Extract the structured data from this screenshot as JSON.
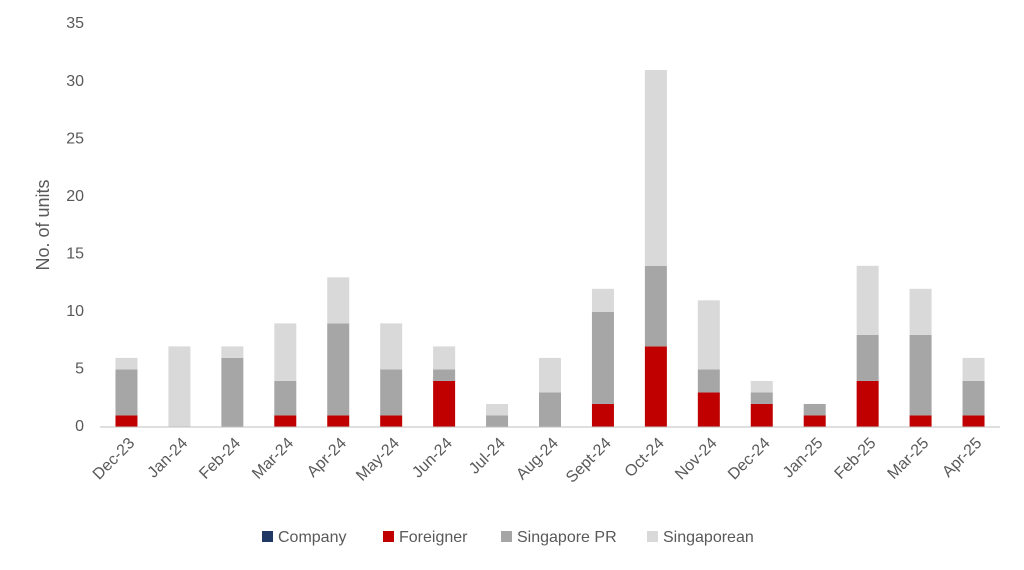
{
  "chart_data": {
    "type": "stacked_bar",
    "y_label": "No. of units",
    "categories": [
      "Dec-23",
      "Jan-24",
      "Feb-24",
      "Mar-24",
      "Apr-24",
      "May-24",
      "Jun-24",
      "Jul-24",
      "Aug-24",
      "Sept-24",
      "Oct-24",
      "Nov-24",
      "Dec-24",
      "Jan-25",
      "Feb-25",
      "Mar-25",
      "Apr-25"
    ],
    "series": [
      {
        "name": "Company",
        "color": "#1f3864",
        "values": [
          0,
          0,
          0,
          0,
          0,
          0,
          0,
          0,
          0,
          0,
          0,
          0,
          0,
          0,
          0,
          0,
          0
        ]
      },
      {
        "name": "Foreigner",
        "color": "#c00000",
        "values": [
          1,
          0,
          0,
          1,
          1,
          1,
          4,
          0,
          0,
          2,
          7,
          3,
          2,
          1,
          4,
          1,
          1
        ]
      },
      {
        "name": "Singapore PR",
        "color": "#a6a6a6",
        "values": [
          4,
          0,
          6,
          3,
          8,
          4,
          1,
          1,
          3,
          8,
          7,
          2,
          1,
          1,
          4,
          7,
          3
        ]
      },
      {
        "name": "Singaporean",
        "color": "#d9d9d9",
        "values": [
          1,
          7,
          1,
          5,
          4,
          4,
          2,
          1,
          3,
          2,
          17,
          6,
          1,
          0,
          6,
          4,
          2
        ]
      }
    ],
    "ylim": [
      0,
      35
    ],
    "yticks": [
      0,
      5,
      10,
      15,
      20,
      25,
      30,
      35
    ],
    "grid": false,
    "legend": "bottom"
  }
}
